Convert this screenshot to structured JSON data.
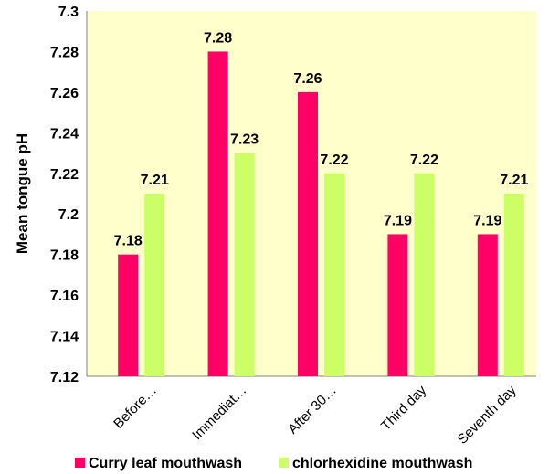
{
  "chart_data": {
    "type": "bar",
    "categories": [
      "Before…",
      "Immediat…",
      "After 30…",
      "Third day",
      "Seventh day"
    ],
    "series": [
      {
        "name": "Curry leaf mouthwash",
        "color": "#ff0066",
        "values": [
          7.18,
          7.28,
          7.26,
          7.19,
          7.19
        ]
      },
      {
        "name": "chlorhexidine mouthwash",
        "color": "#ccff66",
        "values": [
          7.21,
          7.23,
          7.22,
          7.22,
          7.21
        ]
      }
    ],
    "ylabel": "Mean tongue pH",
    "xlabel": "",
    "ylim": [
      7.12,
      7.3
    ],
    "yticks": [
      "7.12",
      "7.14",
      "7.16",
      "7.18",
      "7.2",
      "7.22",
      "7.24",
      "7.26",
      "7.28",
      "7.3"
    ],
    "data_labels": [
      [
        "7.18",
        "7.28",
        "7.26",
        "7.19",
        "7.19"
      ],
      [
        "7.21",
        "7.23",
        "7.22",
        "7.22",
        "7.21"
      ]
    ],
    "plot_background": "#ffffcc",
    "grid": false,
    "legend_position": "bottom"
  }
}
